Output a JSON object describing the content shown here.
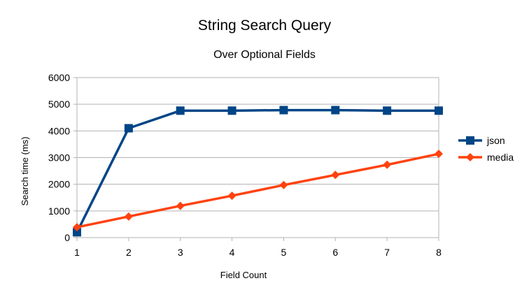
{
  "chart_data": {
    "type": "line",
    "title": "String Search Query",
    "subtitle": "Over Optional Fields",
    "xlabel": "Field Count",
    "ylabel": "Search time (ms)",
    "categories": [
      "1",
      "2",
      "3",
      "4",
      "5",
      "6",
      "7",
      "8"
    ],
    "yticks": [
      "0",
      "1000",
      "2000",
      "3000",
      "4000",
      "5000",
      "6000"
    ],
    "ylim": [
      0,
      6000
    ],
    "grid": true,
    "legend_position": "right",
    "series": [
      {
        "name": "json",
        "values": [
          200,
          4100,
          4760,
          4760,
          4780,
          4780,
          4760,
          4760
        ],
        "color": "#004586",
        "marker": "square"
      },
      {
        "name": "media",
        "values": [
          390,
          790,
          1190,
          1570,
          1970,
          2350,
          2730,
          3140
        ],
        "color": "#ff420e",
        "marker": "diamond"
      }
    ]
  }
}
